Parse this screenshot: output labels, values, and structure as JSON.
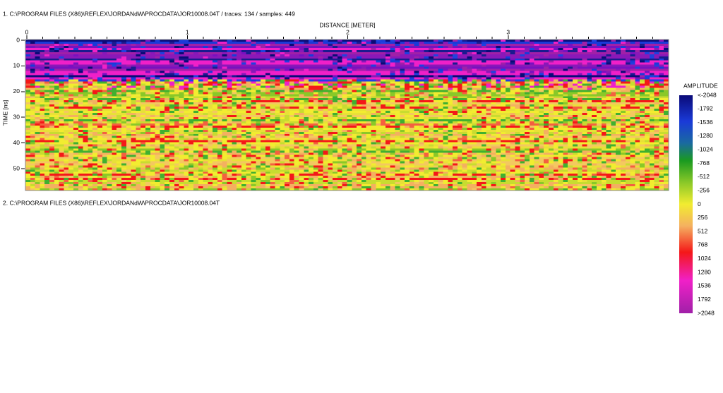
{
  "header": {
    "line1": "1. C:\\PROGRAM FILES (X86)\\REFLEX\\JORDANdW\\PROCDATA\\JOR10008.04T  / traces: 134 / samples: 449",
    "line2": "2. C:\\PROGRAM FILES (X86)\\REFLEX\\JORDANdW\\PROCDATA\\JOR10008.04T"
  },
  "plot": {
    "x_label": "DISTANCE [METER]",
    "y_label": "TIME [ns]",
    "xlim": [
      0,
      4.0
    ],
    "xticks": [
      0,
      1,
      2,
      3
    ],
    "ylim": [
      0,
      58.5
    ],
    "yticks": [
      0,
      10,
      20,
      30,
      40,
      50
    ]
  },
  "colorbar": {
    "title": "AMPLITUDE",
    "labels": [
      "<-2048",
      "-1792",
      "-1536",
      "-1280",
      "-1024",
      "-768",
      "-512",
      "-256",
      "0",
      "256",
      "512",
      "768",
      "1024",
      "1280",
      "1536",
      "1792",
      ">2048"
    ]
  }
}
